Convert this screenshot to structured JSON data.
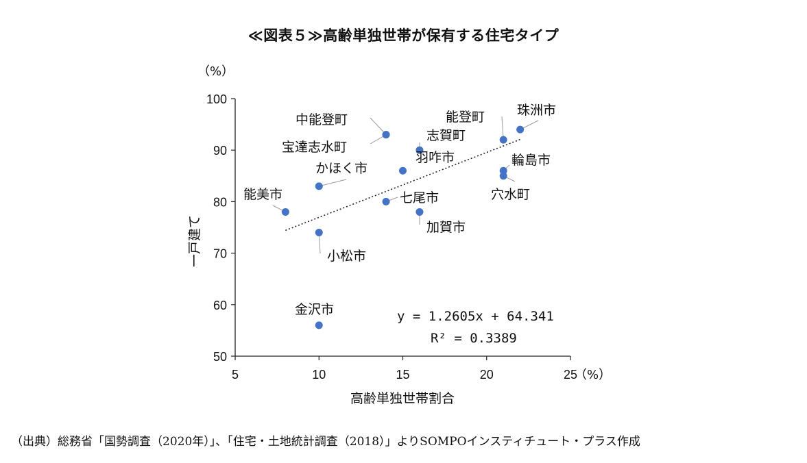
{
  "title": "≪図表５≫高齢単独世帯が保有する住宅タイプ",
  "source": "（出典）総務省「国勢調査（2020年）」、「住宅・土地統計調査（2018）」よりSOMPOインスティチュート・プラス作成",
  "chart_data": {
    "type": "scatter",
    "xlabel": "高齢単独世帯割合",
    "ylabel": "一戸建て",
    "x_unit": "（%）",
    "y_unit": "（%）",
    "xlim": [
      5,
      25
    ],
    "ylim": [
      50,
      100
    ],
    "x_ticks": [
      "5",
      "10",
      "15",
      "20",
      "25"
    ],
    "y_ticks": [
      "50",
      "60",
      "70",
      "80",
      "90",
      "100"
    ],
    "grid": false,
    "marker_color": "#4472c4",
    "points": [
      {
        "name": "能美市",
        "x": 8,
        "y": 78
      },
      {
        "name": "かほく市",
        "x": 10,
        "y": 83
      },
      {
        "name": "小松市",
        "x": 10,
        "y": 74
      },
      {
        "name": "金沢市",
        "x": 10,
        "y": 56
      },
      {
        "name": "中能登町",
        "x": 14,
        "y": 93
      },
      {
        "name": "宝達志水町",
        "x": 14,
        "y": 93
      },
      {
        "name": "七尾市",
        "x": 14,
        "y": 80
      },
      {
        "name": "羽咋市",
        "x": 15,
        "y": 86
      },
      {
        "name": "志賀町",
        "x": 16,
        "y": 90
      },
      {
        "name": "加賀市",
        "x": 16,
        "y": 78
      },
      {
        "name": "能登町",
        "x": 21,
        "y": 92
      },
      {
        "name": "輪島市",
        "x": 21,
        "y": 86
      },
      {
        "name": "穴水町",
        "x": 21,
        "y": 85
      },
      {
        "name": "珠洲市",
        "x": 22,
        "y": 94
      }
    ],
    "trendline": {
      "slope": 1.2605,
      "intercept": 64.341,
      "x_from": 8,
      "x_to": 22
    },
    "equation": "y = 1.2605x + 64.341",
    "r_squared": "R² = 0.3389"
  }
}
